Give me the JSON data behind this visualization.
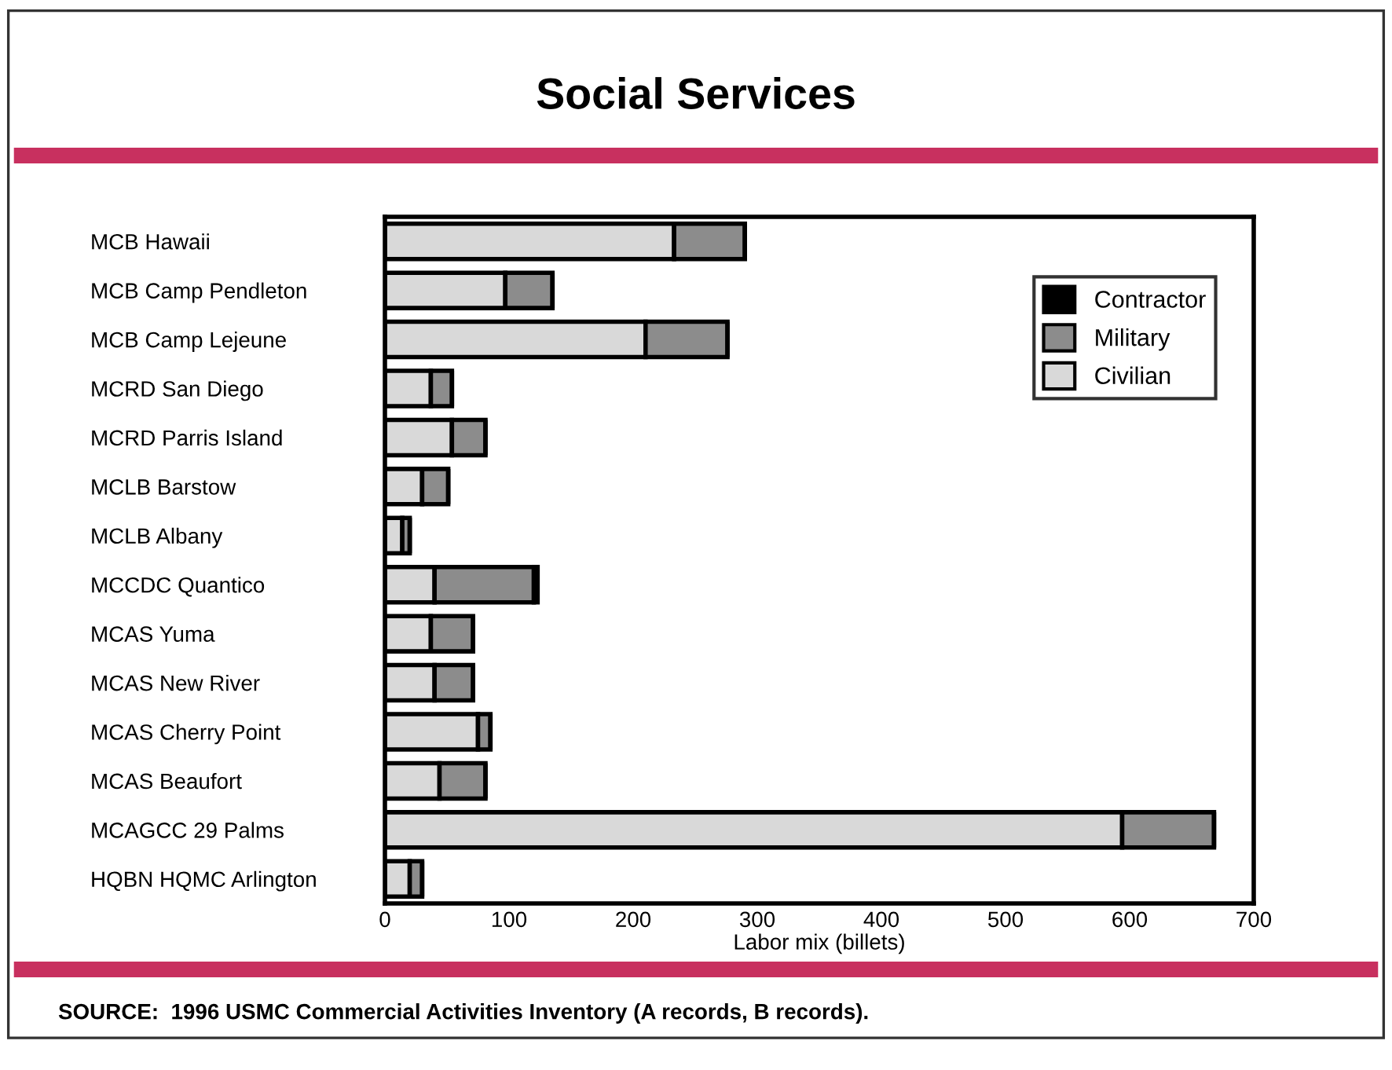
{
  "chart_data": {
    "type": "bar",
    "orientation": "horizontal",
    "stacked": true,
    "title": "Social Services",
    "xlabel": "Labor mix (billets)",
    "categories": [
      "MCB Hawaii",
      "MCB Camp Pendleton",
      "MCB Camp Lejeune",
      "MCRD San Diego",
      "MCRD Parris Island",
      "MCLB Barstow",
      "MCLB Albany",
      "MCCDC Quantico",
      "MCAS Yuma",
      "MCAS New River",
      "MCAS Cherry Point",
      "MCAS Beaufort",
      "MCAGCC 29 Palms",
      "HQBN HQMC Arlington"
    ],
    "series": [
      {
        "name": "Civilian",
        "color": "#d9d9d9",
        "values": [
          233,
          97,
          210,
          37,
          54,
          30,
          14,
          40,
          37,
          40,
          75,
          44,
          594,
          20
        ]
      },
      {
        "name": "Military",
        "color": "#8c8c8c",
        "values": [
          57,
          38,
          66,
          17,
          27,
          21,
          6,
          80,
          34,
          31,
          10,
          37,
          74,
          10
        ]
      },
      {
        "name": "Contractor",
        "color": "#000000",
        "values": [
          0,
          0,
          0,
          0,
          0,
          0,
          0,
          3,
          0,
          0,
          0,
          0,
          0,
          0
        ]
      }
    ],
    "xlim": [
      0,
      700
    ],
    "xticks": [
      0,
      100,
      200,
      300,
      400,
      500,
      600,
      700
    ],
    "grid": false,
    "legend": "top right",
    "annotations": [
      "SOURCE:  1996 USMC Commercial Activities Inventory (A records, B records)."
    ]
  }
}
